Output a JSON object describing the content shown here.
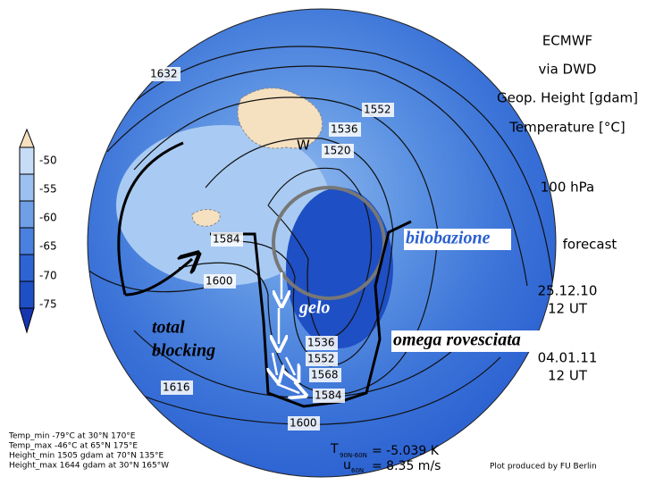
{
  "header": {
    "title": "ECMWF",
    "source": "via DWD",
    "field1": "Geop. Height [gdam]",
    "field2": "Temperature [°C]",
    "level": "100 hPa",
    "forecast": "forecast",
    "init_date": "25.12.10",
    "init_time": "12 UT",
    "valid_date": "04.01.11",
    "valid_time": "12 UT"
  },
  "legend": {
    "labels": [
      "-50",
      "-55",
      "-60",
      "-65",
      "-70",
      "-75"
    ]
  },
  "contour_labels": [
    "1632",
    "1552",
    "1536",
    "1520",
    "1584",
    "1600",
    "1616",
    "1536",
    "1552",
    "1568",
    "1584",
    "1600"
  ],
  "map_marks": [
    "W"
  ],
  "annotations": [
    "bilobazione",
    "gelo",
    "total",
    "blocking",
    "omega rovesciata"
  ],
  "stats": [
    "Temp_min -79°C at 30°N 170°E",
    "Temp_max -46°C at 65°N 175°E",
    "Height_min 1505 gdam at 70°N 135°E",
    "Height_max 1644 gdam at 30°N 165°W"
  ],
  "footer": {
    "t_symbol": "T",
    "t_sub": "90N-60N",
    "t_value": "= -5.039 K",
    "u_symbol": "u",
    "u_sub": "60N",
    "u_value": "= 8.35 m/s",
    "credit": "Plot produced by FU Berlin"
  }
}
